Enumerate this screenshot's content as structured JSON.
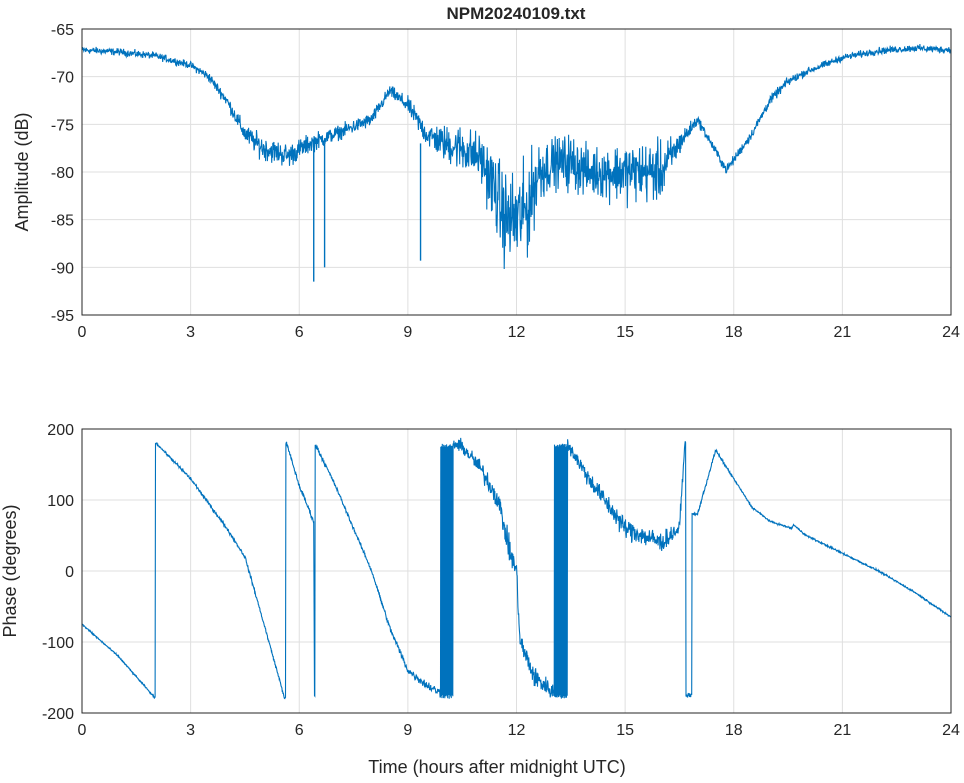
{
  "chart_data": [
    {
      "type": "line",
      "title": "NPM20240109.txt",
      "xlabel": "",
      "ylabel": "Amplitude (dB)",
      "xlim": [
        0,
        24
      ],
      "ylim": [
        -95,
        -65
      ],
      "xticks": [
        "0",
        "3",
        "6",
        "9",
        "12",
        "15",
        "18",
        "21",
        "24"
      ],
      "yticks": [
        "-65",
        "-70",
        "-75",
        "-80",
        "-85",
        "-90",
        "-95"
      ],
      "grid": true,
      "color": "#0072bd",
      "series": [
        {
          "name": "amplitude",
          "x": [
            0,
            1,
            2,
            3,
            3.5,
            4,
            4.5,
            5,
            5.7,
            6.3,
            7,
            8,
            8.5,
            9,
            9.5,
            10,
            10.5,
            11,
            11.3,
            11.7,
            12,
            12.3,
            12.6,
            13,
            13.5,
            14,
            15,
            16,
            16.5,
            17,
            17.8,
            18.5,
            19,
            19.5,
            20,
            21,
            22,
            23,
            24
          ],
          "y": [
            -67.2,
            -67.4,
            -67.8,
            -68.8,
            -70,
            -72.5,
            -76,
            -77.5,
            -78.3,
            -77,
            -76,
            -74.5,
            -71.5,
            -73,
            -76,
            -77,
            -77.5,
            -78.5,
            -81,
            -85,
            -85,
            -84,
            -80,
            -79,
            -79,
            -80,
            -80,
            -80,
            -77,
            -74.5,
            -79.8,
            -76,
            -72.5,
            -70.5,
            -69.5,
            -68,
            -67.3,
            -67,
            -67.2
          ],
          "noise": [
            0.3,
            0.3,
            0.3,
            0.3,
            0.4,
            0.5,
            0.8,
            1,
            1,
            0.8,
            0.6,
            0.6,
            0.5,
            0.7,
            1,
            1.5,
            2,
            2,
            3,
            4,
            4,
            4,
            3,
            2,
            2.5,
            2,
            2.5,
            2.5,
            1,
            0.4,
            0.4,
            0.4,
            0.4,
            0.4,
            0.3,
            0.3,
            0.3,
            0.3,
            0.3
          ],
          "spikes": [
            [
              6.4,
              -91.5
            ],
            [
              6.7,
              -90
            ],
            [
              9.35,
              -89.3
            ]
          ]
        }
      ]
    },
    {
      "type": "line",
      "title": "",
      "xlabel": "Time (hours after midnight UTC)",
      "ylabel": "Phase (degrees)",
      "xlim": [
        0,
        24
      ],
      "ylim": [
        -200,
        200
      ],
      "xticks": [
        "0",
        "3",
        "6",
        "9",
        "12",
        "15",
        "18",
        "21",
        "24"
      ],
      "yticks": [
        "200",
        "100",
        "0",
        "-100",
        "-200"
      ],
      "grid": true,
      "color": "#0072bd",
      "series": [
        {
          "name": "phase",
          "x": [
            0,
            1,
            2,
            2.05,
            3,
            4,
            4.5,
            5,
            5.6,
            5.65,
            6,
            6.4,
            6.42,
            6.45,
            7,
            8,
            8.5,
            9,
            9.5,
            10,
            10.2,
            10.5,
            11,
            11.5,
            11.8,
            12,
            12.1,
            12.5,
            13,
            13.4,
            14,
            15,
            16,
            16.5,
            16.65,
            16.7,
            17,
            17.5,
            18,
            18.5,
            19,
            19.6,
            19.65,
            20,
            21,
            22,
            23,
            24
          ],
          "y": [
            -75,
            -120,
            -178,
            180,
            130,
            60,
            20,
            -70,
            -180,
            180,
            120,
            70,
            -178,
            178,
            120,
            0,
            -80,
            -140,
            -160,
            -175,
            180,
            175,
            145,
            100,
            30,
            0,
            -100,
            -150,
            -170,
            180,
            130,
            60,
            40,
            60,
            180,
            -175,
            80,
            170,
            130,
            90,
            70,
            60,
            65,
            50,
            25,
            0,
            -30,
            -65
          ],
          "noise": [
            1,
            1,
            1,
            1,
            2,
            2,
            2,
            2,
            2,
            2,
            3,
            3,
            3,
            3,
            2,
            2,
            3,
            4,
            5,
            6,
            6,
            8,
            10,
            12,
            14,
            12,
            12,
            12,
            10,
            8,
            10,
            12,
            12,
            8,
            2,
            2,
            2,
            2,
            1,
            1,
            1,
            1,
            1,
            1,
            1,
            1,
            1,
            1
          ],
          "wrap_bursts": [
            [
              9.9,
              10.25
            ],
            [
              13.05,
              13.4
            ]
          ]
        }
      ]
    }
  ]
}
